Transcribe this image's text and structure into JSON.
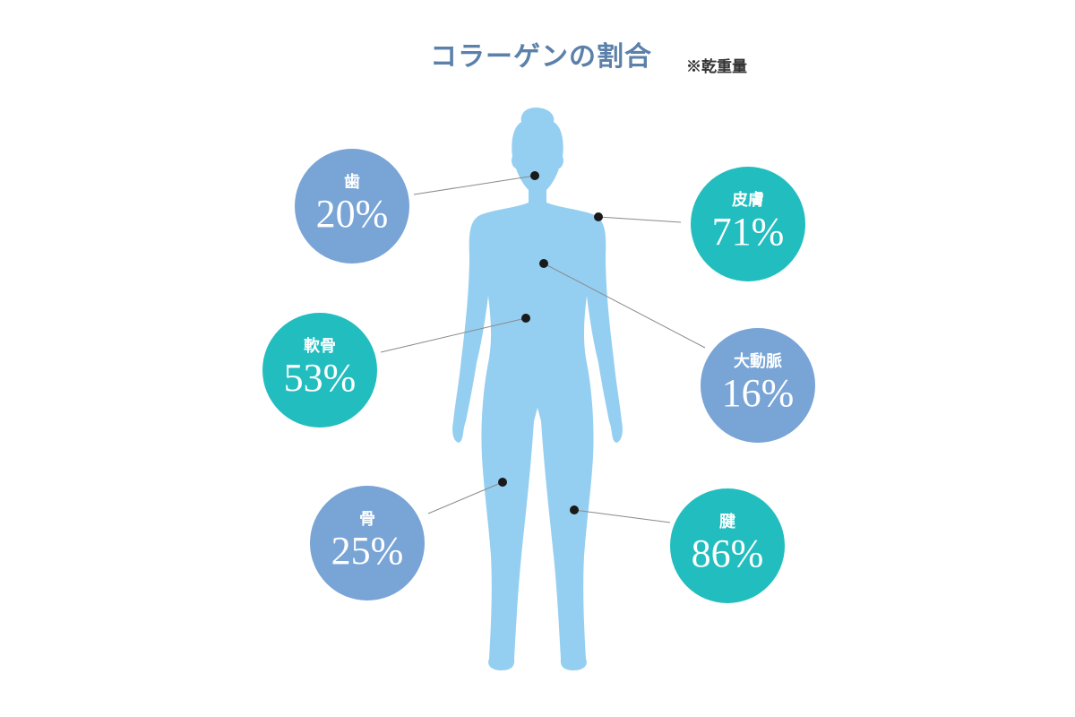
{
  "title": "コラーゲンの割合",
  "note": "※乾重量",
  "colors": {
    "blue": "#78a4d6",
    "teal": "#22bdbf",
    "body": "#94cff1",
    "title": "#5b80aa"
  },
  "items": [
    {
      "label": "歯",
      "value": "20%",
      "color": "blue"
    },
    {
      "label": "皮膚",
      "value": "71%",
      "color": "teal"
    },
    {
      "label": "軟骨",
      "value": "53%",
      "color": "teal"
    },
    {
      "label": "大動脈",
      "value": "16%",
      "color": "blue"
    },
    {
      "label": "骨",
      "value": "25%",
      "color": "blue"
    },
    {
      "label": "腱",
      "value": "86%",
      "color": "teal"
    }
  ]
}
